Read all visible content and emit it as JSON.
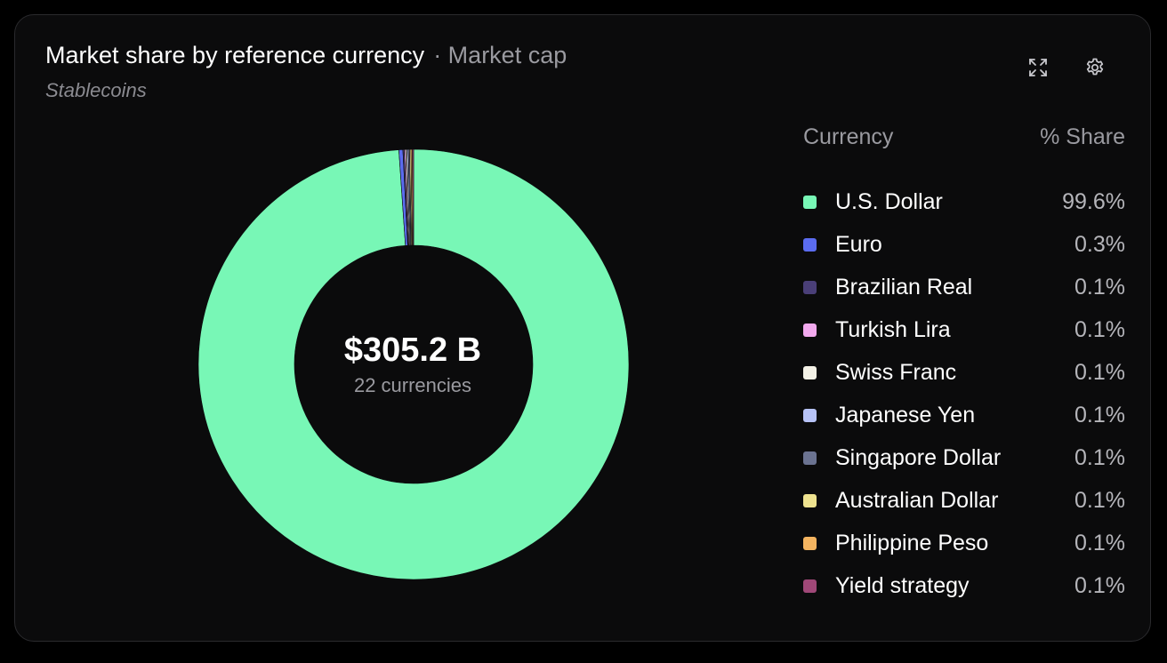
{
  "header": {
    "title": "Market share by reference currency",
    "metric": "· Market cap",
    "subtitle": "Stablecoins"
  },
  "toolbar": {
    "expand_icon": "expand-icon",
    "settings_icon": "gear-icon"
  },
  "summary": {
    "total": "$305.2 B",
    "count_label": "22 currencies"
  },
  "legend": {
    "col_currency": "Currency",
    "col_share": "% Share"
  },
  "chart_data": {
    "type": "pie",
    "donut": true,
    "categories": [
      "U.S. Dollar",
      "Euro",
      "Brazilian Real",
      "Turkish Lira",
      "Swiss Franc",
      "Japanese Yen",
      "Singapore Dollar",
      "Australian Dollar",
      "Philippine Peso",
      "Yield strategy"
    ],
    "values": [
      99.6,
      0.3,
      0.1,
      0.1,
      0.1,
      0.1,
      0.1,
      0.1,
      0.1,
      0.1
    ],
    "labels": [
      "99.6%",
      "0.3%",
      "0.1%",
      "0.1%",
      "0.1%",
      "0.1%",
      "0.1%",
      "0.1%",
      "0.1%",
      "0.1%"
    ],
    "colors": [
      "#78f7b6",
      "#5b6cf0",
      "#4a3f78",
      "#f2a9ee",
      "#f3f1e6",
      "#b7c3f7",
      "#6b7391",
      "#eee28f",
      "#f4b460",
      "#a04878"
    ],
    "legend_position": "right"
  }
}
